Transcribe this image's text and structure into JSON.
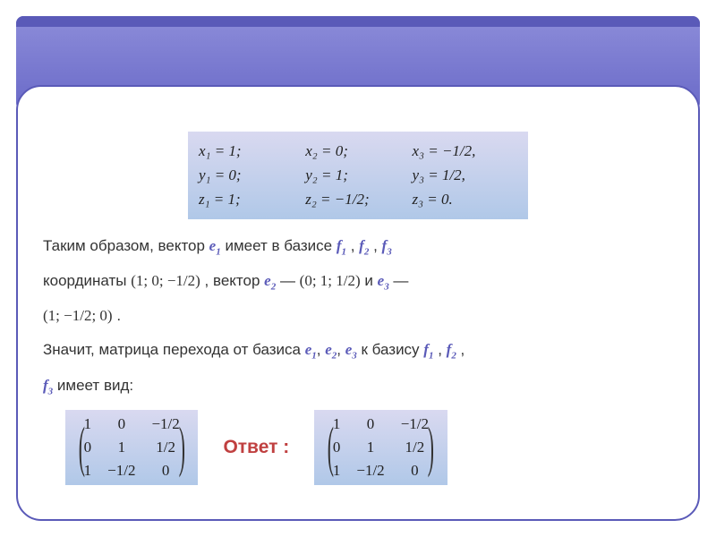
{
  "equations": {
    "row1": {
      "c1": "x₁ = 1;",
      "c2": "x₂ = 0;",
      "c3": "x₃ = −1/2,"
    },
    "row2": {
      "c1": "y₁ = 0;",
      "c2": "y₂ = 1;",
      "c3": "y₃ = 1/2,"
    },
    "row3": {
      "c1": "z₁ = 1;",
      "c2": "z₂ = −1/2;",
      "c3": "z₃ = 0."
    }
  },
  "text": {
    "t1a": "Таким образом,  вектор   ",
    "e1": "e",
    "s1": "1",
    "t1b": "   имеет в базисе    ",
    "f": "f",
    "s2": "2",
    "s3": "3",
    "comma": " ,  ",
    "t2a": "координаты  ",
    "coord1": "(1; 0; −1/2)",
    "t2b": " ,   вектор   ",
    "dash": " —   ",
    "coord2": "(0; 1; 1/2)",
    "t2c": "   и   ",
    "t2d": " —",
    "coord3": "(1; −1/2; 0)",
    "period": " .",
    "t3a": "    Значит, матрица перехода от базиса  ",
    "t3b": "   к  базису    ",
    "t4": "  имеет вид:"
  },
  "matrix": {
    "r1c1": "1",
    "r1c2": "0",
    "r1c3": "−1/2",
    "r2c1": "0",
    "r2c2": "1",
    "r2c3": "1/2",
    "r3c1": "1",
    "r3c2": "−1/2",
    "r3c3": "0"
  },
  "answer_label": "Ответ :",
  "colors": {
    "accent": "#5a5ab8",
    "answer": "#c04040",
    "gradient_top": "#d9d9f0",
    "gradient_bottom": "#b0c8e8"
  }
}
